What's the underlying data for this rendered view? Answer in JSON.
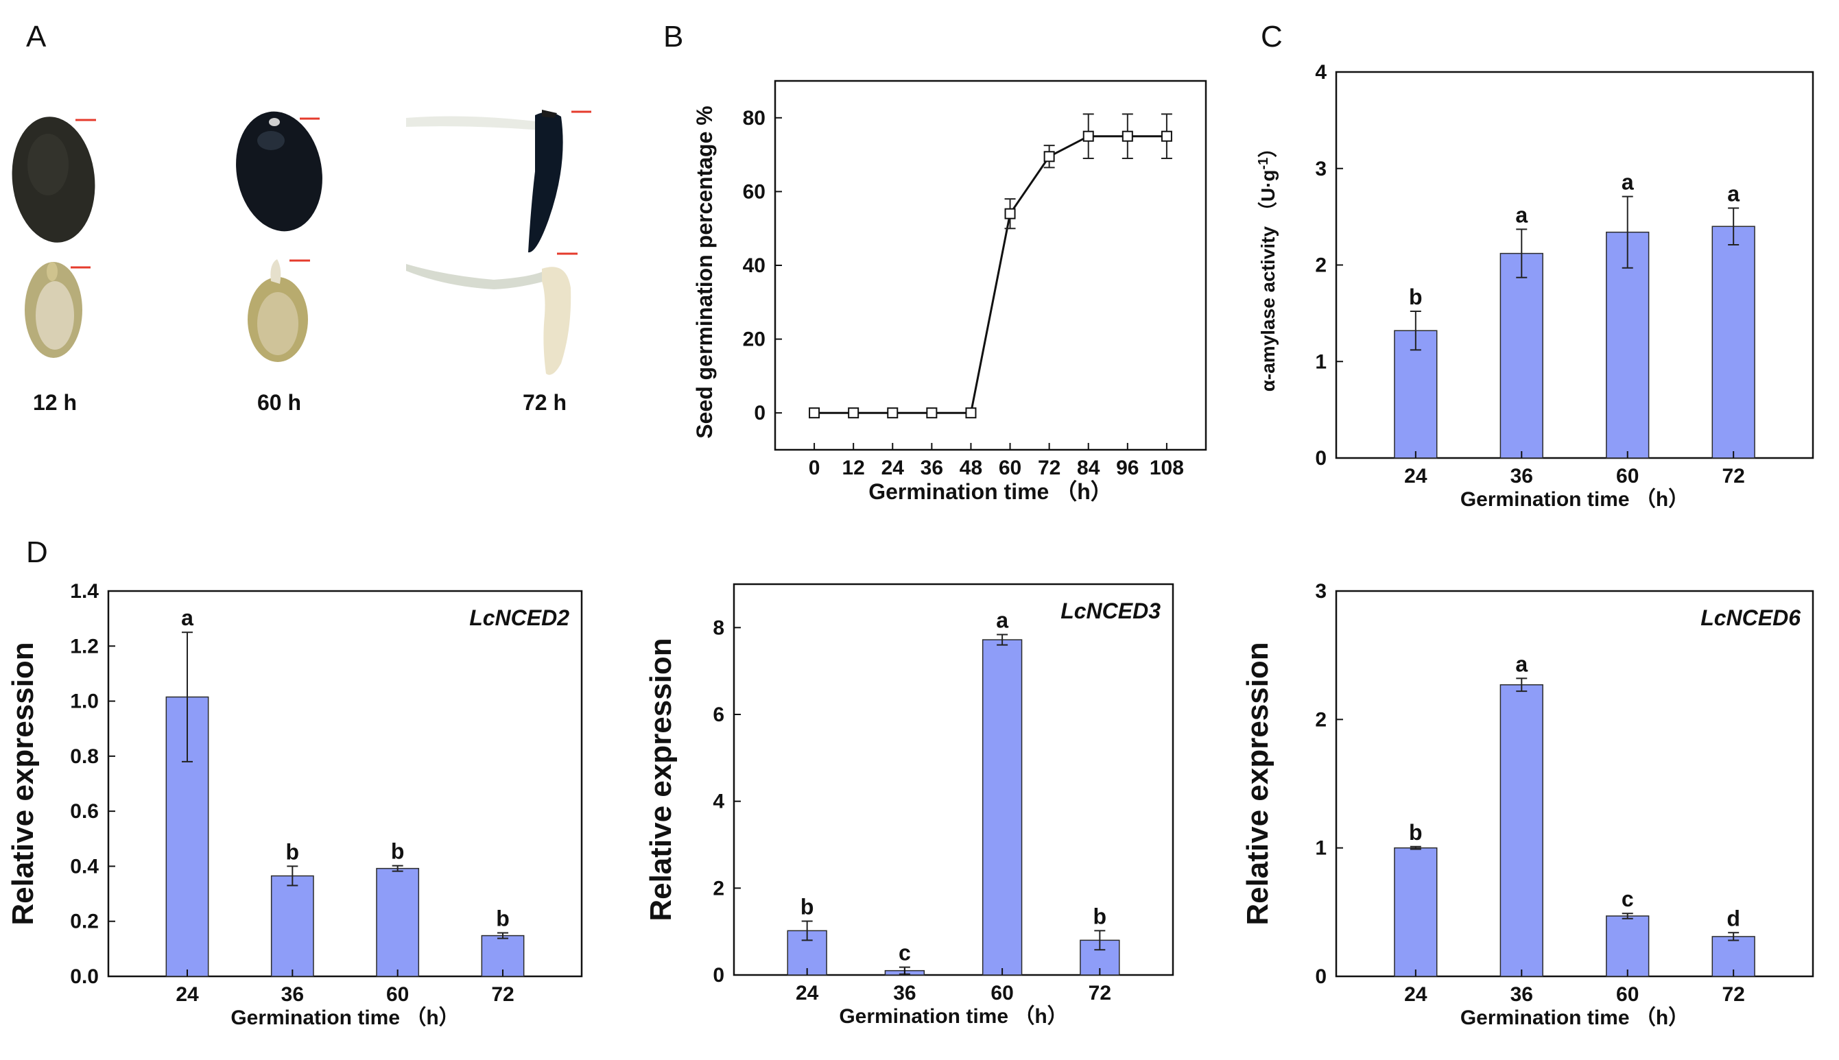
{
  "panels": {
    "a": {
      "letter": "A",
      "time_labels": [
        "12 h",
        "60 h",
        "72 h"
      ]
    },
    "b": {
      "letter": "B"
    },
    "c": {
      "letter": "C"
    },
    "d": {
      "letter": "D"
    }
  },
  "colors": {
    "bar": "#8e9df8",
    "scale_bar": "#e53b2c",
    "axis": "#111111"
  },
  "chart_data": [
    {
      "id": "B",
      "type": "line",
      "xlabel": "Germination time （h）",
      "ylabel": "Seed germination percentage %",
      "x": [
        0,
        12,
        24,
        36,
        48,
        60,
        72,
        84,
        96,
        108
      ],
      "y": [
        0,
        0,
        0,
        0,
        0,
        54,
        69.5,
        75,
        75,
        75
      ],
      "err": [
        0,
        0,
        0,
        0,
        0,
        4,
        3,
        6,
        6,
        6
      ],
      "xticks": [
        0,
        12,
        24,
        36,
        48,
        60,
        72,
        84,
        96,
        108
      ],
      "xlim": [
        -12,
        120
      ],
      "ylim": [
        -10,
        90
      ],
      "yticks": [
        0,
        20,
        40,
        60,
        80
      ],
      "marker": "open-square"
    },
    {
      "id": "C",
      "type": "bar",
      "xlabel": "Germination time （h）",
      "ylabel_main": "α-amylase activity",
      "ylabel_unit": "（U·g",
      "ylabel_sup": "-1",
      "ylabel_close": "）",
      "categories": [
        "24",
        "36",
        "60",
        "72"
      ],
      "values": [
        1.32,
        2.12,
        2.34,
        2.4
      ],
      "err": [
        0.2,
        0.25,
        0.37,
        0.19
      ],
      "letters": [
        "b",
        "a",
        "a",
        "a"
      ],
      "ylim": [
        0,
        4
      ],
      "yticks": [
        0,
        1,
        2,
        3,
        4
      ]
    },
    {
      "id": "D1",
      "type": "bar",
      "gene": "LcNCED2",
      "xlabel": "Germination time （h）",
      "ylabel": "Relative expression",
      "categories": [
        "24",
        "36",
        "60",
        "72"
      ],
      "values": [
        1.015,
        0.365,
        0.392,
        0.148
      ],
      "err": [
        0.235,
        0.035,
        0.01,
        0.01
      ],
      "letters": [
        "a",
        "b",
        "b",
        "b"
      ],
      "ylim": [
        0,
        1.4
      ],
      "yticks": [
        "0.0",
        "0.2",
        "0.4",
        "0.6",
        "0.8",
        "1.0",
        "1.2",
        "1.4"
      ]
    },
    {
      "id": "D2",
      "type": "bar",
      "gene": "LcNCED3",
      "xlabel": "Germination time （h）",
      "ylabel": "Relative expression",
      "categories": [
        "24",
        "36",
        "60",
        "72"
      ],
      "values": [
        1.02,
        0.1,
        7.72,
        0.8
      ],
      "err": [
        0.22,
        0.08,
        0.12,
        0.22
      ],
      "letters": [
        "b",
        "c",
        "a",
        "b"
      ],
      "ylim": [
        0,
        9
      ],
      "yticks": [
        "0",
        "2",
        "4",
        "6",
        "8"
      ]
    },
    {
      "id": "D3",
      "type": "bar",
      "gene": "LcNCED6",
      "xlabel": "Germination time （h）",
      "ylabel": "Relative expression",
      "categories": [
        "24",
        "36",
        "60",
        "72"
      ],
      "values": [
        1.0,
        2.27,
        0.47,
        0.31
      ],
      "err": [
        0.01,
        0.05,
        0.02,
        0.03
      ],
      "letters": [
        "b",
        "a",
        "c",
        "d"
      ],
      "ylim": [
        0,
        3
      ],
      "yticks": [
        "0",
        "1",
        "2",
        "3"
      ]
    }
  ]
}
